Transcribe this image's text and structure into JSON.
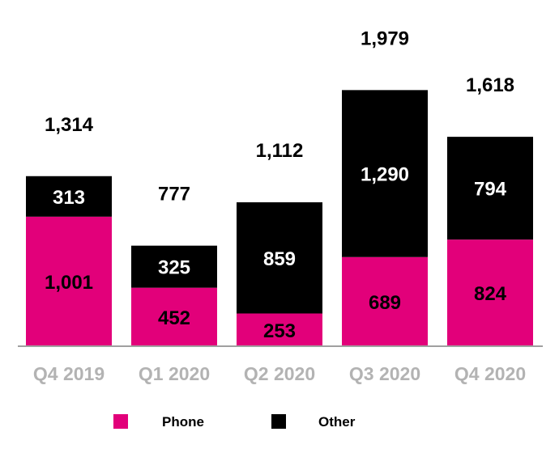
{
  "colors": {
    "phone": "#e2007a",
    "other": "#000000",
    "axis": "#a0a0a0",
    "category_text": "#b3b3b3"
  },
  "chart_data": {
    "type": "bar",
    "stacked": true,
    "categories": [
      "Q4 2019",
      "Q1 2020",
      "Q2 2020",
      "Q3 2020",
      "Q4 2020"
    ],
    "series": [
      {
        "name": "Phone",
        "values": [
          1001,
          452,
          253,
          689,
          824
        ]
      },
      {
        "name": "Other",
        "values": [
          313,
          325,
          859,
          1290,
          794
        ]
      }
    ],
    "totals": [
      "1,314",
      "777",
      "1,112",
      "1,979",
      "1,618"
    ],
    "value_labels": {
      "Phone": [
        "1,001",
        "452",
        "253",
        "689",
        "824"
      ],
      "Other": [
        "313",
        "325",
        "859",
        "1,290",
        "794"
      ]
    },
    "ylim": [
      0,
      2100
    ],
    "grid": false,
    "legend": {
      "position": "bottom",
      "entries": [
        "Phone",
        "Other"
      ]
    }
  }
}
